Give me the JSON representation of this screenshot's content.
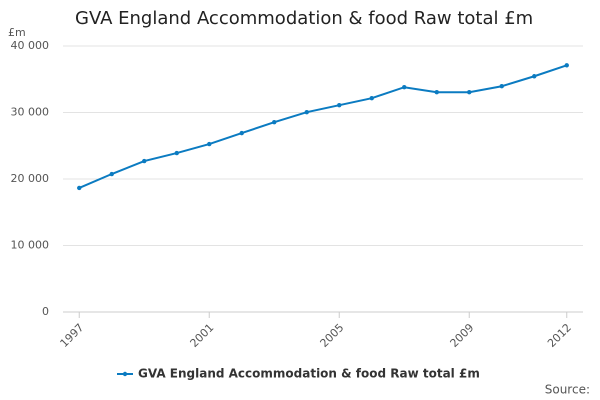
{
  "chart_data": {
    "type": "line",
    "title": "GVA England Accommodation & food Raw total £m",
    "y_label": "£m",
    "source": "Source:",
    "x": [
      1997,
      1998,
      1999,
      2000,
      2001,
      2002,
      2003,
      2004,
      2005,
      2006,
      2007,
      2008,
      2009,
      2010,
      2011,
      2012
    ],
    "series": [
      {
        "name": "GVA England Accommodation & food Raw total £m",
        "color": "#0b7bc1",
        "values": [
          18650,
          20750,
          22700,
          23900,
          25250,
          26900,
          28550,
          30050,
          31100,
          32150,
          33800,
          33050,
          33050,
          33950,
          35450,
          37100
        ]
      }
    ],
    "xlim": [
      1996.5,
      2012.5
    ],
    "xticks": [
      1997,
      2001,
      2005,
      2009,
      2012
    ],
    "ylim": [
      0,
      40000
    ],
    "yticks": [
      0,
      {
        "value": 10000,
        "label": "10 000"
      },
      {
        "value": 20000,
        "label": "20 000"
      },
      {
        "value": 30000,
        "label": "30 000"
      },
      {
        "value": 40000,
        "label": "40 000"
      }
    ],
    "grid": true,
    "legend": "bottom"
  }
}
